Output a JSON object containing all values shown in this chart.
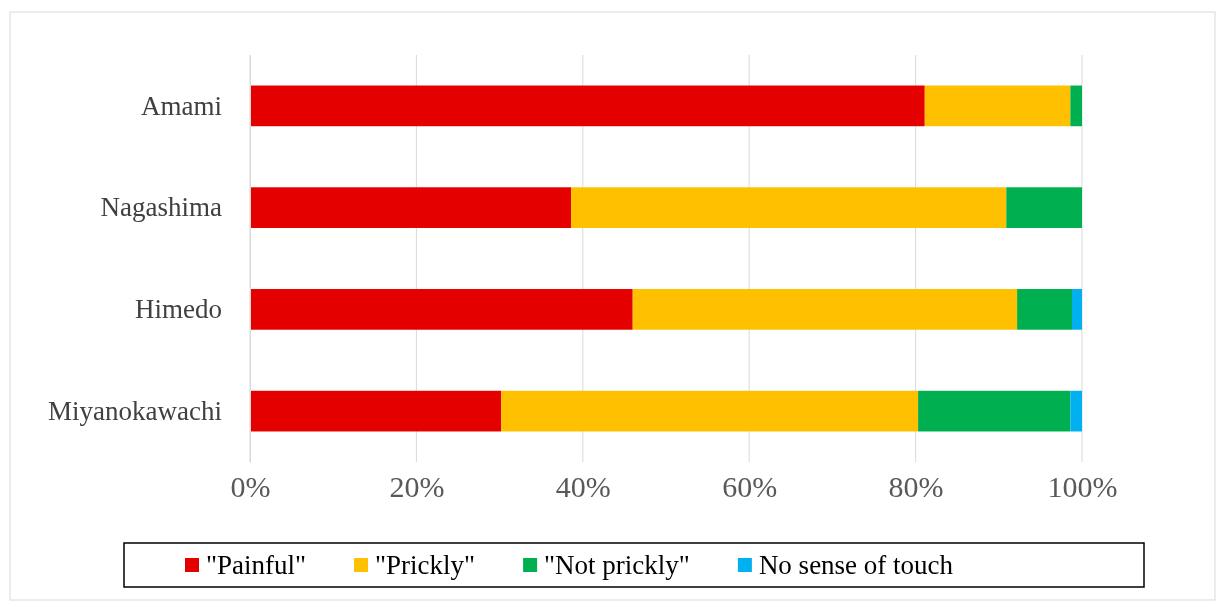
{
  "chart_data": {
    "type": "bar",
    "orientation": "horizontal",
    "stacked": true,
    "categories": [
      "Amami",
      "Nagashima",
      "Himedo",
      "Miyanokawachi"
    ],
    "series": [
      {
        "name": "\"Painful\"",
        "color": "#e50000",
        "values": [
          81.1,
          38.6,
          46.0,
          30.2
        ]
      },
      {
        "name": "\"Prickly\"",
        "color": "#ffc000",
        "values": [
          17.5,
          52.3,
          46.2,
          50.1
        ]
      },
      {
        "name": "\"Not prickly\"",
        "color": "#00b050",
        "values": [
          1.4,
          9.1,
          6.6,
          18.3
        ]
      },
      {
        "name": "No sense of touch",
        "color": "#00b0f0",
        "values": [
          0,
          0,
          1.2,
          1.4
        ]
      }
    ],
    "xlim": [
      0,
      100
    ],
    "xticks": [
      {
        "value": 0,
        "label": "0%"
      },
      {
        "value": 20,
        "label": "20%"
      },
      {
        "value": 40,
        "label": "40%"
      },
      {
        "value": 60,
        "label": "60%"
      },
      {
        "value": 80,
        "label": "80%"
      },
      {
        "value": 100,
        "label": "100%"
      }
    ],
    "grid": "x",
    "legend": "bottom"
  }
}
